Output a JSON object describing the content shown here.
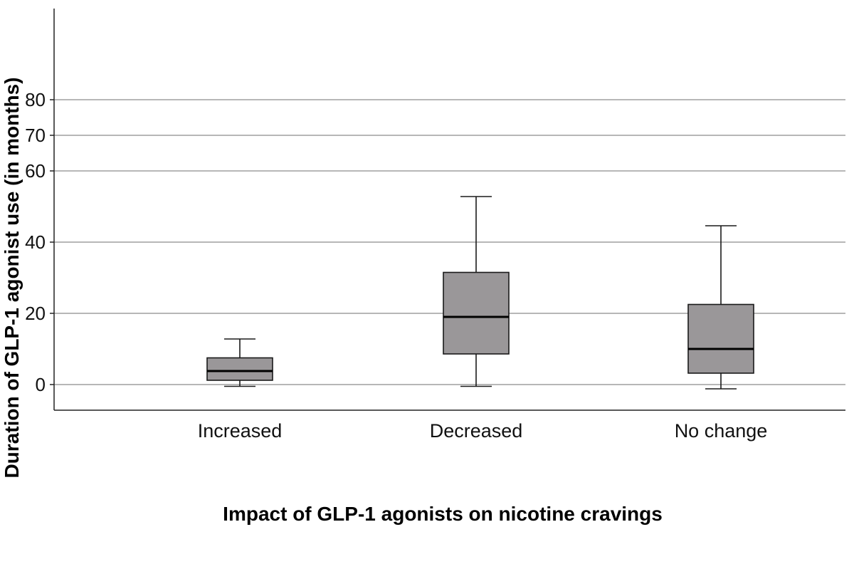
{
  "chart_data": {
    "type": "boxplot",
    "title": "",
    "xlabel": "Impact of GLP-1 agonists on nicotine cravings",
    "ylabel": "Duration of GLP-1 agonist use (in months)",
    "ylim": [
      -7,
      85
    ],
    "yticks": [
      0,
      20,
      40,
      60,
      70,
      80
    ],
    "categories": [
      "Increased",
      "Decreased",
      "No change"
    ],
    "boxes": [
      {
        "category": "Increased",
        "whisker_low": -0.5,
        "q1": 1.2,
        "median": 3.8,
        "q3": 7.5,
        "whisker_high": 12.8
      },
      {
        "category": "Decreased",
        "whisker_low": -0.5,
        "q1": 8.6,
        "median": 19.0,
        "q3": 31.5,
        "whisker_high": 52.8
      },
      {
        "category": "No change",
        "whisker_low": -1.2,
        "q1": 3.2,
        "median": 10.0,
        "q3": 22.5,
        "whisker_high": 44.6
      }
    ],
    "grid": true,
    "colors": {
      "box_fill": "#9a9799",
      "box_stroke": "#1a1a1a",
      "grid": "#8c8c8c",
      "axis": "#222222"
    }
  }
}
